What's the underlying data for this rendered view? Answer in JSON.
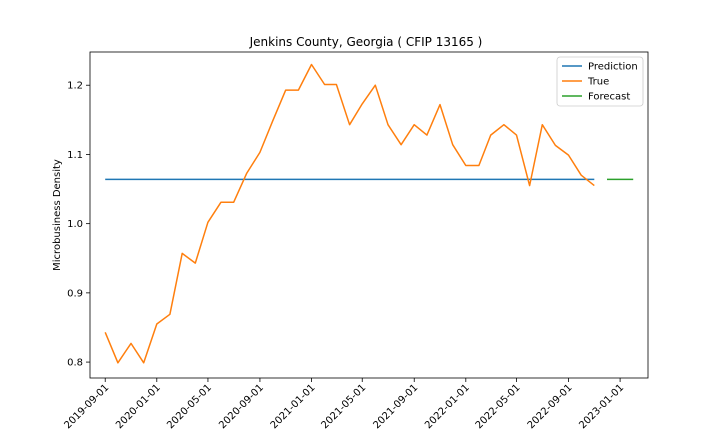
{
  "chart_data": {
    "type": "line",
    "title": "Jenkins County, Georgia ( CFIP 13165 )",
    "xlabel": "",
    "ylabel": "Microbusiness Density",
    "xlim": [
      "2019-07-27",
      "2023-03-08"
    ],
    "ylim": [
      0.777,
      1.248
    ],
    "xticks": [
      "2019-09-01",
      "2020-01-01",
      "2020-05-01",
      "2020-09-01",
      "2021-01-01",
      "2021-05-01",
      "2021-09-01",
      "2022-01-01",
      "2022-05-01",
      "2022-09-01",
      "2023-01-01"
    ],
    "yticks": [
      0.8,
      0.9,
      1.0,
      1.1,
      1.2
    ],
    "ytick_labels": [
      "0.8",
      "0.9",
      "1.0",
      "1.1",
      "1.2"
    ],
    "legend": {
      "position": "top-right"
    },
    "series": [
      {
        "name": "Prediction",
        "color": "#1f77b4",
        "x": [
          "2019-09-01",
          "2022-11-01"
        ],
        "y": [
          1.064,
          1.064
        ]
      },
      {
        "name": "True",
        "color": "#ff7f0e",
        "x": [
          "2019-09-01",
          "2019-10-01",
          "2019-11-01",
          "2019-12-01",
          "2020-01-01",
          "2020-02-01",
          "2020-03-01",
          "2020-04-01",
          "2020-05-01",
          "2020-06-01",
          "2020-07-01",
          "2020-08-01",
          "2020-09-01",
          "2020-10-01",
          "2020-11-01",
          "2020-12-01",
          "2021-01-01",
          "2021-02-01",
          "2021-03-01",
          "2021-04-01",
          "2021-05-01",
          "2021-06-01",
          "2021-07-01",
          "2021-08-01",
          "2021-09-01",
          "2021-10-01",
          "2021-11-01",
          "2021-12-01",
          "2022-01-01",
          "2022-02-01",
          "2022-03-01",
          "2022-04-01",
          "2022-05-01",
          "2022-06-01",
          "2022-07-01",
          "2022-08-01",
          "2022-09-01",
          "2022-10-01",
          "2022-11-01"
        ],
        "y": [
          0.843,
          0.799,
          0.827,
          0.799,
          0.855,
          0.869,
          0.957,
          0.943,
          1.002,
          1.031,
          1.031,
          1.073,
          1.103,
          1.148,
          1.193,
          1.193,
          1.23,
          1.201,
          1.201,
          1.143,
          1.173,
          1.2,
          1.143,
          1.114,
          1.143,
          1.128,
          1.172,
          1.114,
          1.084,
          1.084,
          1.128,
          1.143,
          1.128,
          1.055,
          1.143,
          1.113,
          1.099,
          1.07,
          1.055
        ]
      },
      {
        "name": "Forecast",
        "color": "#2ca02c",
        "x": [
          "2022-12-01",
          "2023-02-01"
        ],
        "y": [
          1.064,
          1.064
        ]
      }
    ]
  }
}
